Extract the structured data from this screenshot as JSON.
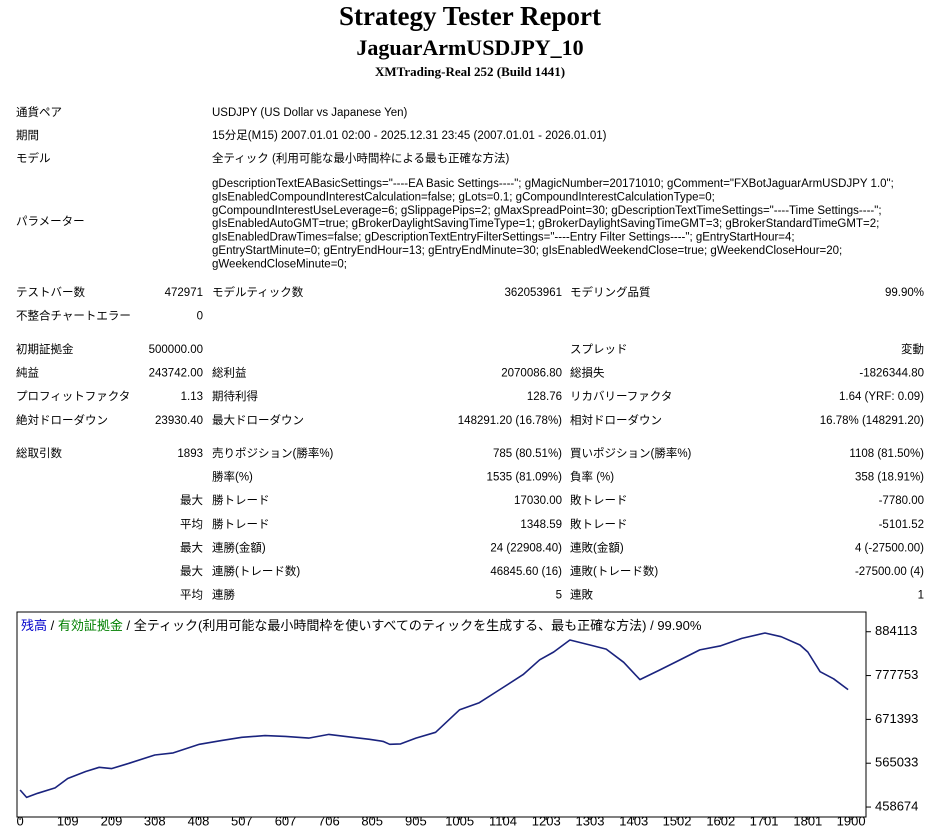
{
  "header": {
    "title": "Strategy Tester Report",
    "subtitle": "JaguarArmUSDJPY_10",
    "server": "XMTrading-Real 252 (Build 1441)"
  },
  "info": {
    "rows": [
      {
        "label": "通貨ペア",
        "value": "USDJPY (US Dollar vs Japanese Yen)"
      },
      {
        "label": "期間",
        "value": "15分足(M15) 2007.01.01 02:00 - 2025.12.31 23:45 (2007.01.01 - 2026.01.01)"
      },
      {
        "label": "モデル",
        "value": "全ティック (利用可能な最小時間枠による最も正確な方法)"
      }
    ],
    "parameters_label": "パラメーター",
    "parameters": [
      "gDescriptionTextEABasicSettings=\"----EA Basic Settings----\"; gMagicNumber=20171010; gComment=\"FXBotJaguarArmUSDJPY 1.0\";",
      "gIsEnabledCompoundInterestCalculation=false; gLots=0.1; gCompoundInterestCalculationType=0;",
      "gCompoundInterestUseLeverage=6; gSlippagePips=2; gMaxSpreadPoint=30; gDescriptionTextTimeSettings=\"----Time Settings----\";",
      "gIsEnabledAutoGMT=true; gBrokerDaylightSavingTimeType=1; gBrokerDaylightSavingTimeGMT=3; gBrokerStandardTimeGMT=2;",
      "gIsEnabledDrawTimes=false; gDescriptionTextEntryFilterSettings=\"----Entry Filter Settings----\"; gEntryStartHour=4;",
      "gEntryStartMinute=0; gEntryEndHour=13; gEntryEndMinute=30; gIsEnabledWeekendClose=true; gWeekendCloseHour=20;",
      "gWeekendCloseMinute=0;"
    ]
  },
  "stats": [
    [
      {
        "label1": "テストバー数",
        "value1": "472971",
        "label2": "モデルティック数",
        "value2": "362053961",
        "label3": "モデリング品質",
        "value3": "99.90%"
      },
      {
        "label1": "不整合チャートエラー",
        "value1": "0"
      }
    ],
    [
      {
        "label1": "初期証拠金",
        "value1": "500000.00",
        "label3": "スプレッド",
        "value3": "変動"
      },
      {
        "label1": "純益",
        "value1": "243742.00",
        "label2": "総利益",
        "value2": "2070086.80",
        "label3": "総損失",
        "value3": "-1826344.80"
      },
      {
        "label1": "プロフィットファクタ",
        "value1": "1.13",
        "label2": "期待利得",
        "value2": "128.76",
        "label3": "リカバリーファクタ",
        "value3": "1.64 (YRF: 0.09)"
      },
      {
        "label1": "絶対ドローダウン",
        "value1": "23930.40",
        "label2": "最大ドローダウン",
        "value2": "148291.20 (16.78%)",
        "label3": "相対ドローダウン",
        "value3": "16.78% (148291.20)"
      }
    ],
    [
      {
        "label1": "総取引数",
        "value1": "1893",
        "label2": "売りポジション(勝率%)",
        "value2": "785 (80.51%)",
        "label3": "買いポジション(勝率%)",
        "value3": "1108 (81.50%)"
      },
      {
        "label2": "勝率(%)",
        "value2": "1535 (81.09%)",
        "label3": "負率 (%)",
        "value3": "358 (18.91%)"
      },
      {
        "value1": "最大",
        "label2": "勝トレード",
        "value2": "17030.00",
        "label3": "敗トレード",
        "value3": "-7780.00"
      },
      {
        "value1": "平均",
        "label2": "勝トレード",
        "value2": "1348.59",
        "label3": "敗トレード",
        "value3": "-5101.52"
      },
      {
        "value1": "最大",
        "label2": "連勝(金額)",
        "value2": "24 (22908.40)",
        "label3": "連敗(金額)",
        "value3": "4 (-27500.00)"
      },
      {
        "value1": "最大",
        "label2": "連勝(トレード数)",
        "value2": "46845.60 (16)",
        "label3": "連敗(トレード数)",
        "value3": "-27500.00 (4)"
      },
      {
        "value1": "平均",
        "label2": "連勝",
        "value2": "5",
        "label3": "連敗",
        "value3": "1"
      }
    ]
  ],
  "chart_data": {
    "type": "line",
    "legend": {
      "separator": "/",
      "equity": "有効証拠金",
      "equity_color": "#008000",
      "model": "全ティック(利用可能な最小時間枠を使いすべてのティックを生成する、最も正確な方法)",
      "quality": "99.90%"
    },
    "x": [
      0,
      15,
      40,
      80,
      109,
      150,
      181,
      209,
      250,
      308,
      350,
      410,
      460,
      507,
      560,
      607,
      660,
      706,
      760,
      799,
      830,
      845,
      870,
      905,
      950,
      1005,
      1050,
      1097,
      1150,
      1188,
      1220,
      1257,
      1303,
      1340,
      1380,
      1417,
      1460,
      1502,
      1554,
      1602,
      1650,
      1703,
      1740,
      1783,
      1801,
      1829,
      1860,
      1893
    ],
    "series": [
      {
        "name": "残高",
        "color": "#1a237e",
        "values": [
          500000,
          482000,
          492000,
          505000,
          528000,
          545000,
          555000,
          552000,
          565000,
          585000,
          590000,
          611000,
          620000,
          628000,
          632000,
          630000,
          626000,
          635000,
          628000,
          623000,
          618000,
          611000,
          612000,
          626000,
          640000,
          695000,
          712000,
          744000,
          780000,
          816000,
          835000,
          864000,
          852000,
          842000,
          810000,
          768000,
          790000,
          812000,
          840000,
          850000,
          868000,
          881000,
          872000,
          852000,
          835000,
          787000,
          770000,
          743742
        ]
      }
    ],
    "xlim": [
      -7,
      1934
    ],
    "ylim": [
      434500,
      932000
    ],
    "xticks": [
      0,
      109,
      209,
      308,
      408,
      507,
      607,
      706,
      805,
      905,
      1005,
      1104,
      1203,
      1303,
      1403,
      1502,
      1602,
      1701,
      1801,
      1900
    ],
    "yticks": [
      458674,
      565033,
      671393,
      777753,
      884113
    ]
  }
}
